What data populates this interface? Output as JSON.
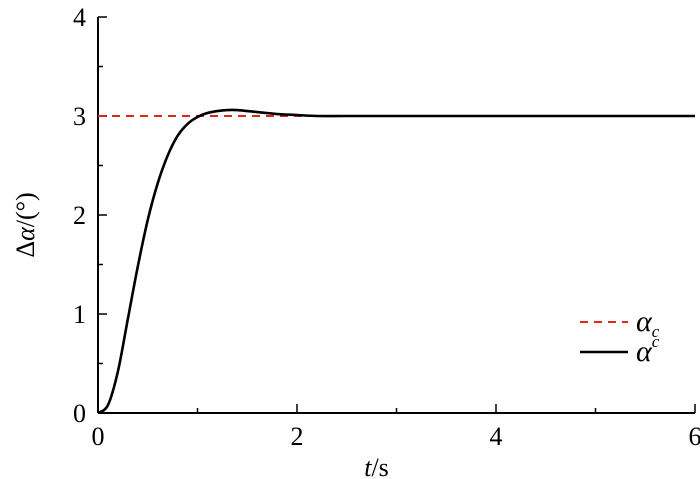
{
  "chart_data": {
    "type": "line",
    "xlabel": {
      "italic": "t",
      "rest": "/s"
    },
    "ylabel": {
      "prefix": "Δ",
      "italic": "α",
      "rest": "/(°)"
    },
    "xlim": [
      0,
      6
    ],
    "ylim": [
      0,
      4
    ],
    "x_ticks": [
      0,
      2,
      4,
      6
    ],
    "x_tick_labels": [
      "0",
      "2",
      "4",
      "6"
    ],
    "y_ticks": [
      0,
      1,
      2,
      3,
      4
    ],
    "y_tick_labels": [
      "0",
      "1",
      "2",
      "3",
      "4"
    ],
    "grid": false,
    "legend_position": "bottom-right",
    "series": [
      {
        "name": {
          "base": "α",
          "sub": "c",
          "sup": ""
        },
        "color": "#e3231c",
        "dash": "dashed",
        "x": [
          0,
          6
        ],
        "y": [
          3,
          3
        ]
      },
      {
        "name": {
          "base": "α",
          "sub": "",
          "sup": "c"
        },
        "color": "#000000",
        "dash": "solid",
        "x": [
          0,
          0.1,
          0.2,
          0.3,
          0.4,
          0.5,
          0.6,
          0.7,
          0.8,
          0.9,
          1.0,
          1.1,
          1.2,
          1.3,
          1.4,
          1.5,
          1.6,
          1.8,
          2.0,
          2.2,
          2.5,
          3.0,
          4.0,
          5.0,
          6.0
        ],
        "y": [
          0,
          0.08,
          0.42,
          0.95,
          1.48,
          1.95,
          2.32,
          2.6,
          2.8,
          2.92,
          2.99,
          3.03,
          3.05,
          3.06,
          3.06,
          3.05,
          3.04,
          3.02,
          3.01,
          3.0,
          3.0,
          3.0,
          3.0,
          3.0,
          3.0
        ]
      }
    ]
  }
}
